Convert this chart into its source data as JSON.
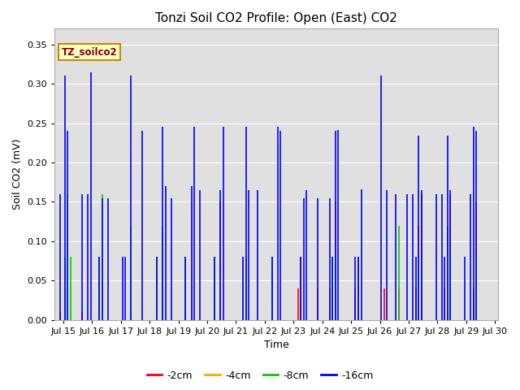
{
  "title": "Tonzi Soil CO2 Profile: Open (East) CO2",
  "xlabel": "Time",
  "ylabel": "Soil CO2 (mV)",
  "series_labels": [
    "-2cm",
    "-4cm",
    "-8cm",
    "-16cm"
  ],
  "series_colors": [
    "#ff0000",
    "#ffa500",
    "#00cc00",
    "#0000ff"
  ],
  "ylim": [
    0,
    0.37
  ],
  "xlim": [
    14.7,
    30.1
  ],
  "yticks": [
    0.0,
    0.05,
    0.1,
    0.15,
    0.2,
    0.25,
    0.3,
    0.35
  ],
  "background_color": "#ffffff",
  "plot_bg_color": "#e0e0e0",
  "grid_color": "#ffffff",
  "title_fontsize": 11,
  "label_fontsize": 9,
  "tick_fontsize": 8,
  "spikes": {
    "times": [
      14.9,
      15.05,
      15.15,
      15.25,
      15.55,
      15.65,
      15.75,
      15.85,
      15.95,
      16.05,
      16.25,
      16.35,
      16.45,
      16.55,
      16.65,
      17.05,
      17.15,
      17.25,
      17.35,
      17.75,
      17.85,
      17.95,
      18.15,
      18.25,
      18.35,
      18.45,
      18.55,
      18.75,
      18.85,
      18.95,
      19.15,
      19.25,
      19.35,
      19.45,
      19.55,
      19.75,
      19.85,
      19.95,
      20.15,
      20.25,
      20.35,
      20.45,
      20.55,
      20.75,
      20.85,
      20.95,
      21.15,
      21.25,
      21.35,
      21.45,
      21.75,
      21.85,
      21.95,
      22.15,
      22.25,
      22.35,
      22.45,
      22.55,
      22.75,
      22.85,
      23.05,
      23.15,
      23.25,
      23.35,
      23.45,
      23.75,
      23.85,
      23.95,
      24.15,
      24.25,
      24.35,
      24.45,
      24.55,
      24.75,
      24.85,
      25.05,
      25.15,
      25.25,
      25.35,
      25.45,
      25.75,
      25.85,
      25.95,
      26.05,
      26.15,
      26.25,
      26.55,
      26.65,
      26.75,
      26.85,
      26.95,
      27.15,
      27.25,
      27.35,
      27.45,
      27.55,
      27.75,
      27.85,
      27.95,
      28.15,
      28.25,
      28.35,
      28.45,
      28.55,
      28.75,
      28.85,
      28.95,
      29.15,
      29.25,
      29.35,
      29.45,
      29.55,
      29.75,
      29.85,
      29.95
    ],
    "red": [
      0.01,
      0.08,
      0.04,
      0.0,
      0.0,
      0.01,
      0.0,
      0.0,
      0.0,
      0.0,
      0.08,
      0.04,
      0.0,
      0.0,
      0.0,
      0.0,
      0.0,
      0.0,
      0.0,
      0.0,
      0.0,
      0.0,
      0.0,
      0.08,
      0.0,
      0.11,
      0.0,
      0.0,
      0.0,
      0.0,
      0.0,
      0.08,
      0.0,
      0.0,
      0.0,
      0.0,
      0.0,
      0.0,
      0.0,
      0.08,
      0.0,
      0.15,
      0.0,
      0.0,
      0.0,
      0.0,
      0.0,
      0.08,
      0.0,
      0.0,
      0.0,
      0.0,
      0.0,
      0.0,
      0.08,
      0.0,
      0.0,
      0.0,
      0.0,
      0.0,
      0.0,
      0.04,
      0.08,
      0.0,
      0.0,
      0.0,
      0.04,
      0.0,
      0.0,
      0.04,
      0.08,
      0.15,
      0.0,
      0.0,
      0.0,
      0.0,
      0.04,
      0.08,
      0.0,
      0.0,
      0.0,
      0.0,
      0.0,
      0.0,
      0.04,
      0.0,
      0.0,
      0.04,
      0.0,
      0.0,
      0.0,
      0.0,
      0.04,
      0.12,
      0.16,
      0.0,
      0.0,
      0.0,
      0.0,
      0.0,
      0.04,
      0.12,
      0.16,
      0.0,
      0.0,
      0.0,
      0.0,
      0.0,
      0.04,
      0.15,
      0.0,
      0.0,
      0.0,
      0.0,
      0.0
    ],
    "orange": [
      0.0,
      0.0,
      0.04,
      0.0,
      0.0,
      0.0,
      0.0,
      0.0,
      0.0,
      0.0,
      0.0,
      0.04,
      0.0,
      0.0,
      0.0,
      0.0,
      0.0,
      0.0,
      0.0,
      0.0,
      0.0,
      0.0,
      0.0,
      0.0,
      0.0,
      0.0,
      0.0,
      0.0,
      0.0,
      0.0,
      0.0,
      0.08,
      0.0,
      0.15,
      0.0,
      0.0,
      0.0,
      0.0,
      0.0,
      0.08,
      0.0,
      0.0,
      0.0,
      0.0,
      0.0,
      0.0,
      0.0,
      0.08,
      0.0,
      0.0,
      0.0,
      0.0,
      0.0,
      0.0,
      0.08,
      0.0,
      0.0,
      0.0,
      0.0,
      0.0,
      0.0,
      0.0,
      0.0,
      0.0,
      0.0,
      0.0,
      0.0,
      0.0,
      0.0,
      0.0,
      0.08,
      0.0,
      0.0,
      0.0,
      0.0,
      0.0,
      0.0,
      0.08,
      0.0,
      0.0,
      0.0,
      0.0,
      0.0,
      0.0,
      0.0,
      0.0,
      0.0,
      0.0,
      0.0,
      0.0,
      0.0,
      0.0,
      0.0,
      0.08,
      0.0,
      0.0,
      0.0,
      0.0,
      0.0,
      0.0,
      0.0,
      0.08,
      0.0,
      0.0,
      0.0,
      0.0,
      0.0,
      0.0,
      0.0,
      0.0,
      0.0,
      0.0,
      0.0,
      0.0,
      0.0
    ],
    "green": [
      0.0,
      0.08,
      0.16,
      0.08,
      0.0,
      0.0,
      0.0,
      0.0,
      0.0,
      0.0,
      0.08,
      0.16,
      0.0,
      0.0,
      0.0,
      0.0,
      0.0,
      0.0,
      0.12,
      0.0,
      0.0,
      0.0,
      0.0,
      0.08,
      0.0,
      0.12,
      0.0,
      0.0,
      0.0,
      0.0,
      0.0,
      0.08,
      0.0,
      0.0,
      0.0,
      0.0,
      0.0,
      0.0,
      0.0,
      0.08,
      0.0,
      0.0,
      0.0,
      0.0,
      0.0,
      0.0,
      0.0,
      0.0,
      0.08,
      0.0,
      0.0,
      0.0,
      0.0,
      0.0,
      0.08,
      0.0,
      0.0,
      0.0,
      0.0,
      0.0,
      0.0,
      0.0,
      0.0,
      0.0,
      0.0,
      0.0,
      0.0,
      0.0,
      0.0,
      0.0,
      0.08,
      0.08,
      0.0,
      0.0,
      0.0,
      0.0,
      0.0,
      0.08,
      0.0,
      0.0,
      0.0,
      0.0,
      0.0,
      0.0,
      0.0,
      0.0,
      0.0,
      0.12,
      0.0,
      0.0,
      0.0,
      0.0,
      0.0,
      0.08,
      0.08,
      0.0,
      0.0,
      0.0,
      0.0,
      0.0,
      0.0,
      0.12,
      0.08,
      0.0,
      0.0,
      0.0,
      0.0,
      0.0,
      0.0,
      0.08,
      0.0,
      0.0,
      0.0,
      0.0,
      0.0
    ],
    "blue": [
      0.16,
      0.31,
      0.24,
      0.0,
      0.0,
      0.16,
      0.0,
      0.16,
      0.315,
      0.0,
      0.08,
      0.155,
      0.0,
      0.155,
      0.0,
      0.08,
      0.08,
      0.0,
      0.31,
      0.24,
      0.0,
      0.0,
      0.0,
      0.08,
      0.0,
      0.245,
      0.17,
      0.155,
      0.0,
      0.0,
      0.0,
      0.08,
      0.0,
      0.17,
      0.245,
      0.165,
      0.0,
      0.0,
      0.0,
      0.08,
      0.0,
      0.165,
      0.245,
      0.0,
      0.0,
      0.0,
      0.0,
      0.08,
      0.245,
      0.165,
      0.165,
      0.0,
      0.0,
      0.0,
      0.08,
      0.0,
      0.245,
      0.24,
      0.0,
      0.0,
      0.0,
      0.0,
      0.08,
      0.155,
      0.165,
      0.0,
      0.155,
      0.0,
      0.0,
      0.155,
      0.08,
      0.24,
      0.241,
      0.0,
      0.0,
      0.0,
      0.08,
      0.08,
      0.166,
      0.0,
      0.0,
      0.0,
      0.0,
      0.31,
      0.0,
      0.165,
      0.16,
      0.0,
      0.0,
      0.0,
      0.16,
      0.16,
      0.08,
      0.234,
      0.165,
      0.0,
      0.0,
      0.0,
      0.16,
      0.16,
      0.08,
      0.234,
      0.165,
      0.0,
      0.0,
      0.0,
      0.08,
      0.16,
      0.245,
      0.24,
      0.0,
      0.0,
      0.0,
      0.0
    ]
  }
}
